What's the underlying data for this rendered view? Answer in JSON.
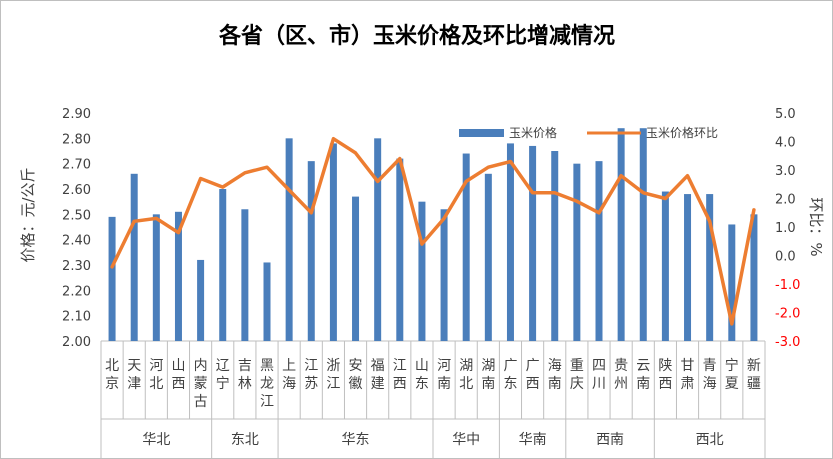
{
  "chart_data": {
    "type": "bar+line",
    "title": "各省（区、市）玉米价格及环比增减情况",
    "ylabel": "价格：元/公斤",
    "y2label": "环比：%",
    "ylim": [
      2.0,
      2.9
    ],
    "y2lim": [
      -3.0,
      5.0
    ],
    "yticks": [
      "2.00",
      "2.10",
      "2.20",
      "2.30",
      "2.40",
      "2.50",
      "2.60",
      "2.70",
      "2.80",
      "2.90"
    ],
    "y2ticks": [
      "-3.0",
      "-2.0",
      "-1.0",
      "0.0",
      "1.0",
      "2.0",
      "3.0",
      "4.0",
      "5.0"
    ],
    "categories": [
      [
        "北",
        "京"
      ],
      [
        "天",
        "津"
      ],
      [
        "河",
        "北"
      ],
      [
        "山",
        "西"
      ],
      [
        "内",
        "蒙",
        "古"
      ],
      [
        "辽",
        "宁"
      ],
      [
        "吉",
        "林"
      ],
      [
        "黑",
        "龙",
        "江"
      ],
      [
        "上",
        "海"
      ],
      [
        "江",
        "苏"
      ],
      [
        "浙",
        "江"
      ],
      [
        "安",
        "徽"
      ],
      [
        "福",
        "建"
      ],
      [
        "江",
        "西"
      ],
      [
        "山",
        "东"
      ],
      [
        "河",
        "南"
      ],
      [
        "湖",
        "北"
      ],
      [
        "湖",
        "南"
      ],
      [
        "广",
        "东"
      ],
      [
        "广",
        "西"
      ],
      [
        "海",
        "南"
      ],
      [
        "重",
        "庆"
      ],
      [
        "四",
        "川"
      ],
      [
        "贵",
        "州"
      ],
      [
        "云",
        "南"
      ],
      [
        "陕",
        "西"
      ],
      [
        "甘",
        "肃"
      ],
      [
        "青",
        "海"
      ],
      [
        "宁",
        "夏"
      ],
      [
        "新",
        "疆"
      ]
    ],
    "regions": [
      {
        "name": "华北",
        "count": 5
      },
      {
        "name": "东北",
        "count": 3
      },
      {
        "name": "华东",
        "count": 7
      },
      {
        "name": "华中",
        "count": 3
      },
      {
        "name": "华南",
        "count": 3
      },
      {
        "name": "西南",
        "count": 4
      },
      {
        "name": "西北",
        "count": 5
      }
    ],
    "series": [
      {
        "name": "玉米价格",
        "type": "bar",
        "axis": "left",
        "color": "#4a7ebb",
        "values": [
          2.49,
          2.66,
          2.5,
          2.51,
          2.32,
          2.6,
          2.52,
          2.31,
          2.8,
          2.71,
          2.78,
          2.57,
          2.8,
          2.72,
          2.55,
          2.52,
          2.74,
          2.66,
          2.78,
          2.77,
          2.75,
          2.7,
          2.71,
          2.84,
          2.84,
          2.59,
          2.58,
          2.58,
          2.46,
          2.5
        ]
      },
      {
        "name": "玉米价格环比",
        "type": "line",
        "axis": "right",
        "color": "#ed7d31",
        "values": [
          -0.4,
          1.2,
          1.3,
          0.8,
          2.7,
          2.4,
          2.9,
          3.1,
          2.3,
          1.5,
          4.1,
          3.6,
          2.6,
          3.4,
          0.4,
          1.3,
          2.6,
          3.1,
          3.3,
          2.2,
          2.2,
          1.9,
          1.5,
          2.8,
          2.2,
          2.0,
          2.8,
          1.2,
          -2.4,
          1.6
        ]
      }
    ],
    "legend_position": "top-right",
    "grid": false
  }
}
